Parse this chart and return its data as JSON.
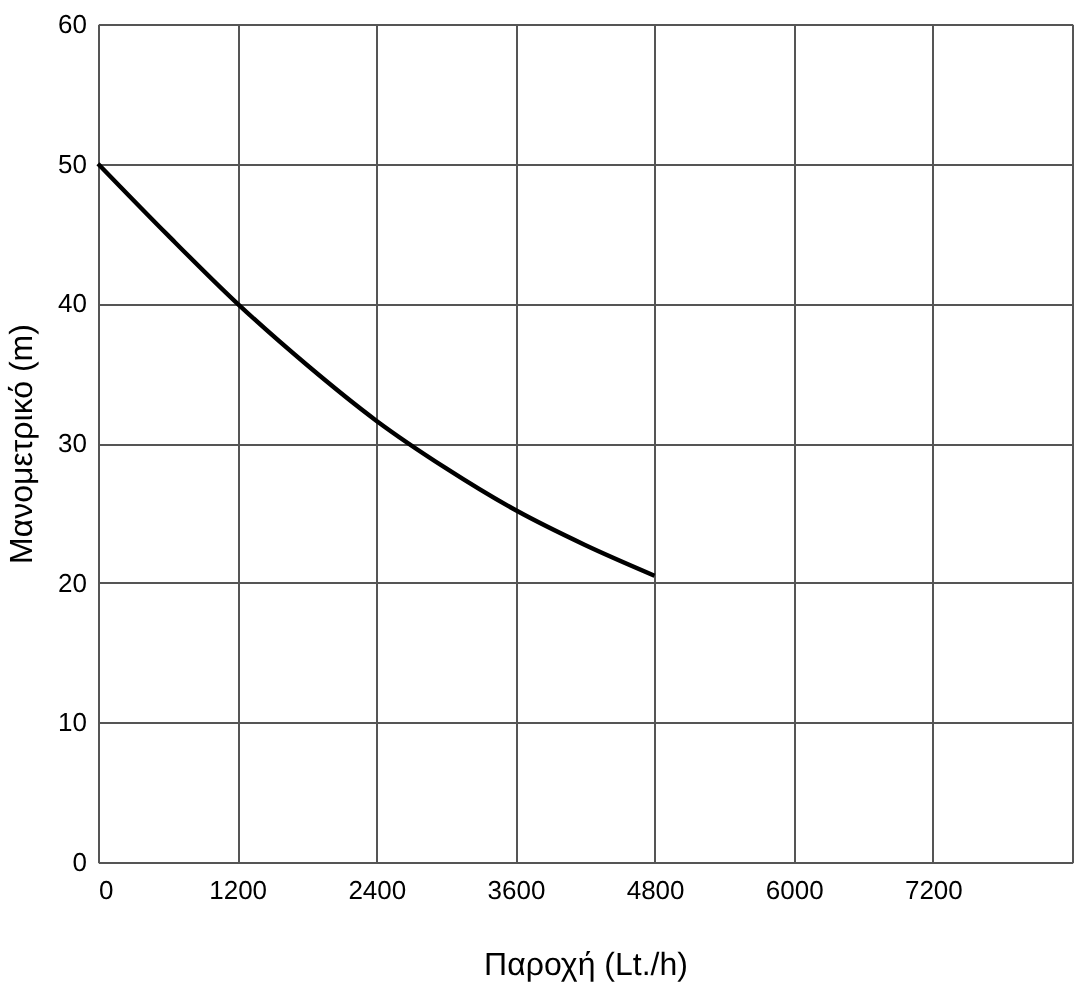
{
  "chart_data": {
    "type": "line",
    "xlabel": "Παροχή (Lt./h)",
    "ylabel": "Μανομετρικό  (m)",
    "x": [
      0,
      600,
      1200,
      1800,
      2400,
      3000,
      3600,
      4200,
      4800
    ],
    "series": [
      {
        "color": "#000000",
        "values": [
          50,
          44.9,
          40,
          35.6,
          31.6,
          28.2,
          25.2,
          22.7,
          20.5
        ]
      }
    ],
    "xlim": [
      0,
      8400
    ],
    "xticks": [
      0,
      1200,
      2400,
      3600,
      4800,
      6000,
      7200,
      {
        "value": 8400,
        "label": null
      }
    ],
    "ylim": [
      0,
      60
    ],
    "yticks": [
      0,
      10,
      20,
      30,
      40,
      50,
      60
    ],
    "grid": true,
    "marker": "none",
    "line_style": "solid"
  }
}
